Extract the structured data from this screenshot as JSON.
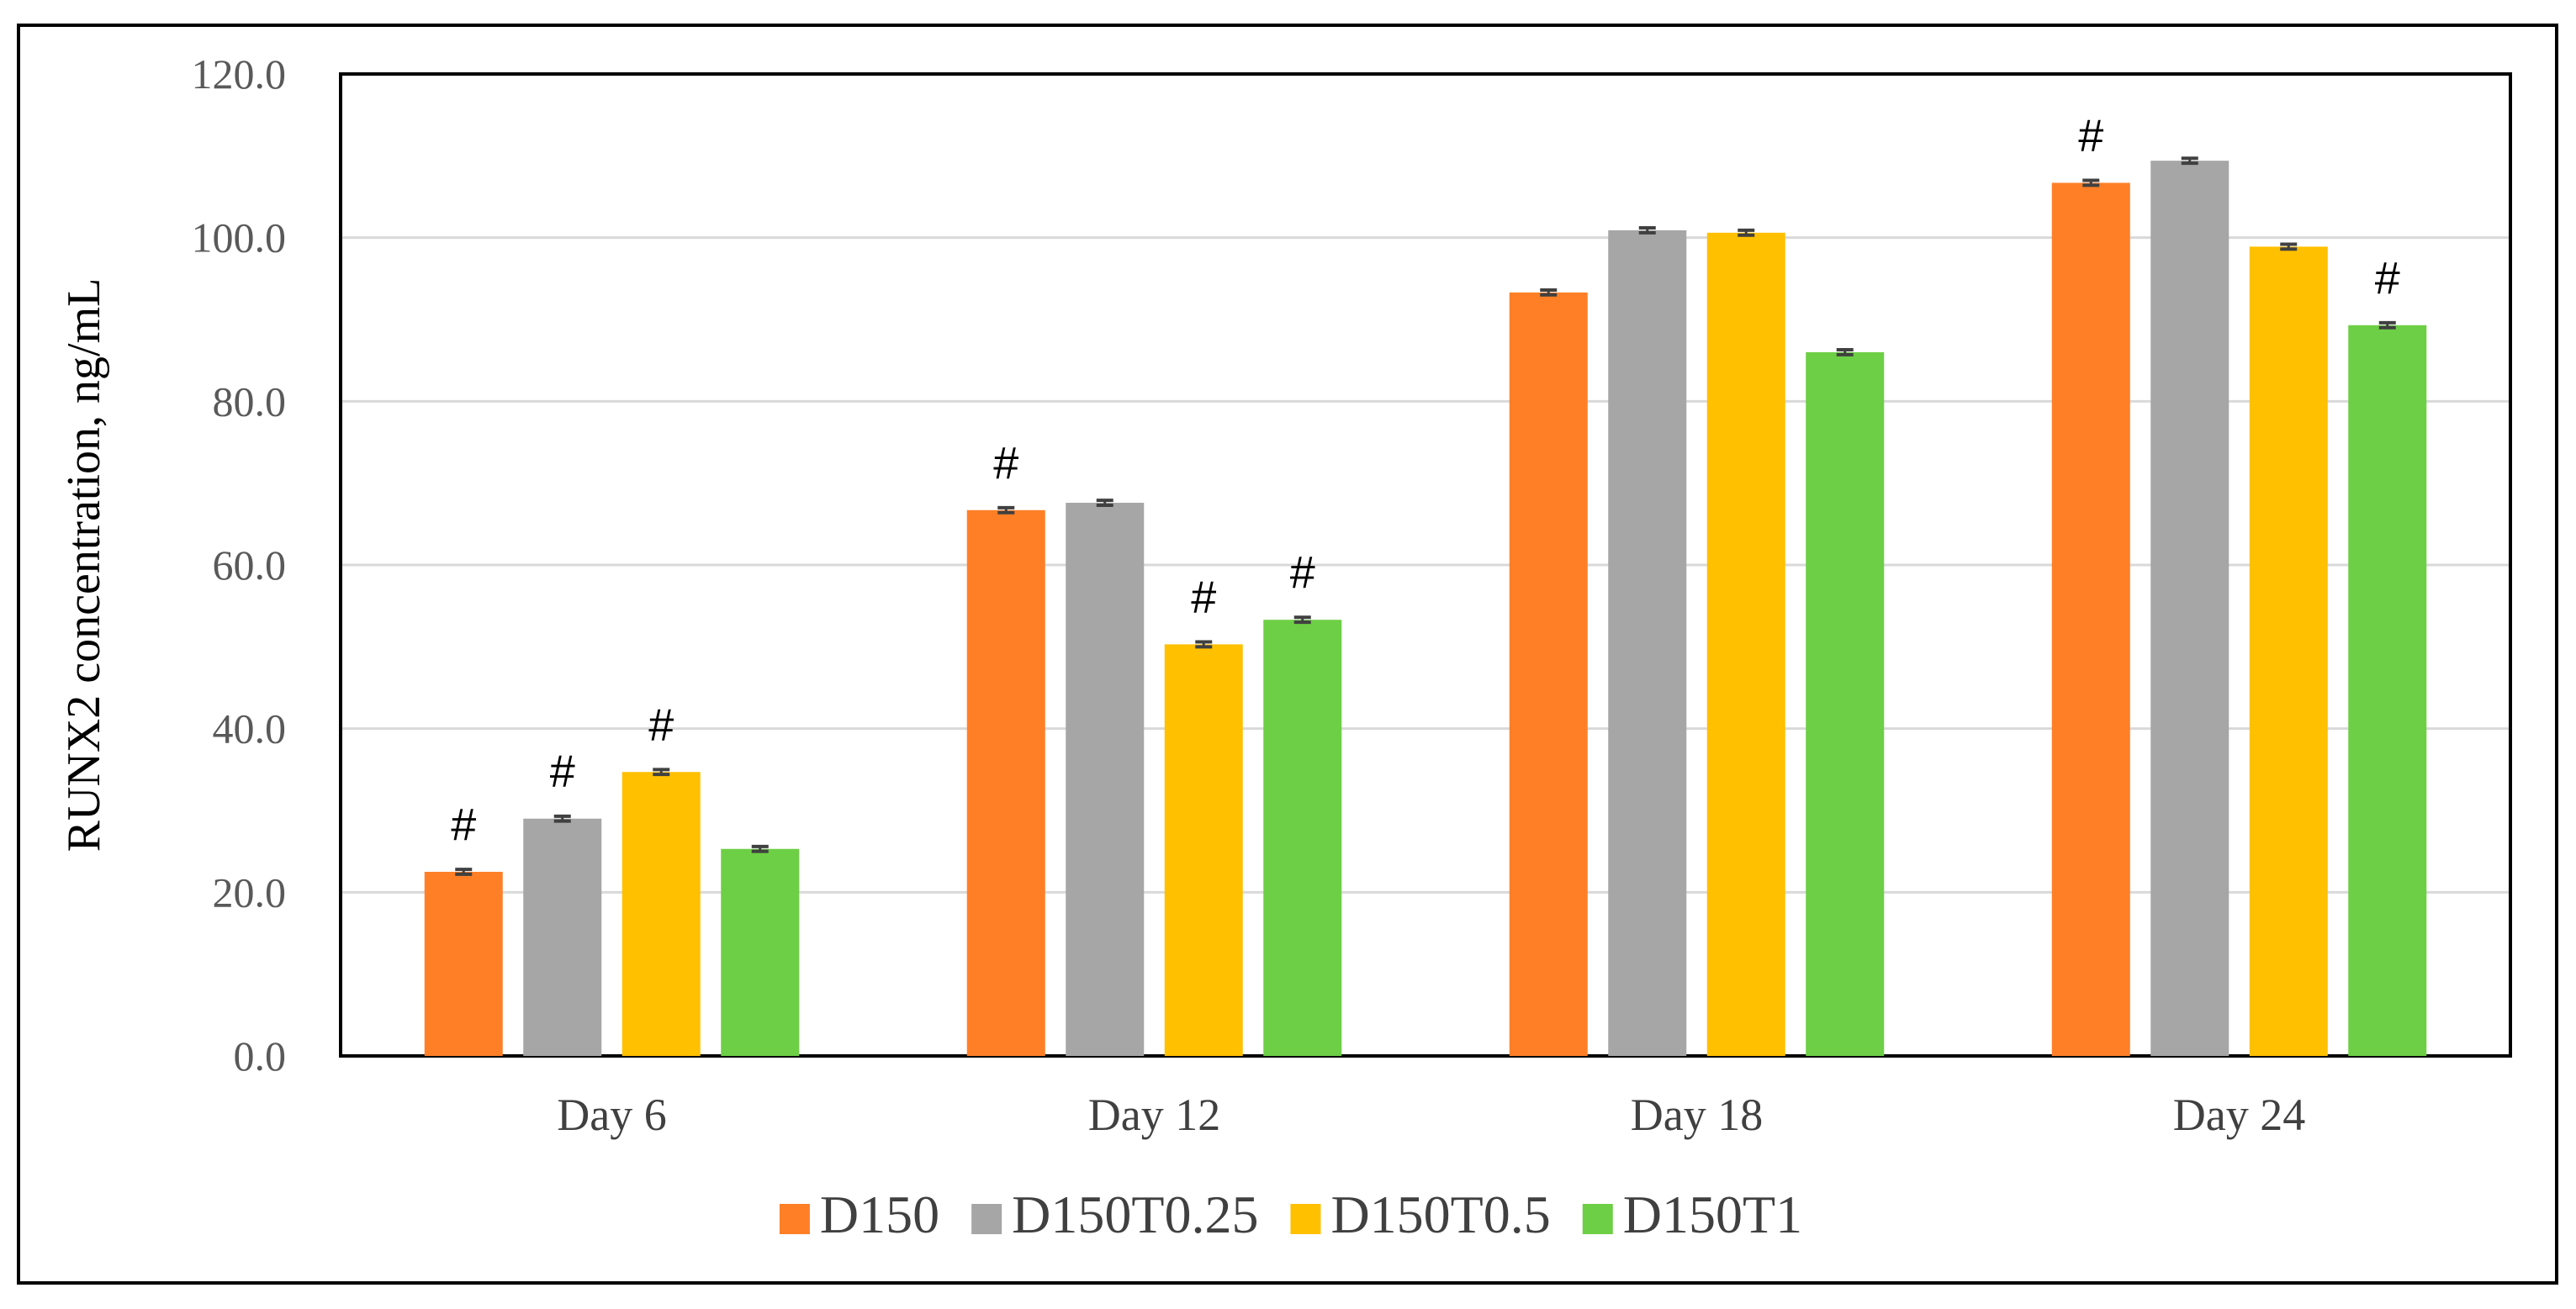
{
  "chart_data": {
    "type": "bar",
    "title": "",
    "xlabel": "",
    "ylabel": "RUNX2 concentration,  ng/mL",
    "ylim": [
      0,
      120
    ],
    "yticks": [
      0,
      20,
      40,
      60,
      80,
      100,
      120
    ],
    "ytick_labels": [
      "0.0",
      "20.0",
      "40.0",
      "60.0",
      "80.0",
      "100.0",
      "120.0"
    ],
    "grid": true,
    "legend_position": "bottom",
    "categories": [
      "Day 6",
      "Day 12",
      "Day 18",
      "Day 24"
    ],
    "series": [
      {
        "name": "D150",
        "color": "#FF7F27",
        "values": [
          22.5,
          66.7,
          93.3,
          106.7
        ],
        "error": [
          0.3,
          0.3,
          0.3,
          0.3
        ],
        "annotations": [
          "#",
          "#",
          "",
          "#"
        ]
      },
      {
        "name": "D150T0.25",
        "color": "#A6A6A6",
        "values": [
          29.0,
          67.6,
          100.9,
          109.4
        ],
        "error": [
          0.3,
          0.3,
          0.3,
          0.3
        ],
        "annotations": [
          "#",
          "",
          "",
          ""
        ]
      },
      {
        "name": "D150T0.5",
        "color": "#FFC000",
        "values": [
          34.7,
          50.3,
          100.6,
          98.9
        ],
        "error": [
          0.3,
          0.3,
          0.3,
          0.3
        ],
        "annotations": [
          "#",
          "#",
          "",
          ""
        ]
      },
      {
        "name": "D150T1",
        "color": "#6DCF45",
        "values": [
          25.3,
          53.3,
          86.0,
          89.3
        ],
        "error": [
          0.3,
          0.3,
          0.3,
          0.3
        ],
        "annotations": [
          "",
          "#",
          "",
          "#"
        ]
      }
    ]
  }
}
